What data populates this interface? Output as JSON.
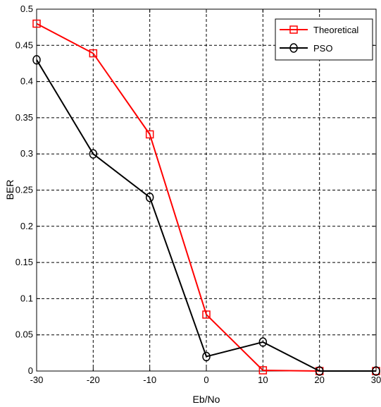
{
  "chart_data": {
    "type": "line",
    "xlabel": "Eb/No",
    "ylabel": "BER",
    "xlim": [
      -30,
      30
    ],
    "ylim": [
      0,
      0.5
    ],
    "x_ticks": [
      "-30",
      "-20",
      "-10",
      "0",
      "10",
      "20",
      "30"
    ],
    "y_ticks": [
      "0",
      "0.05",
      "0.1",
      "0.15",
      "0.2",
      "0.25",
      "0.3",
      "0.35",
      "0.4",
      "0.45",
      "0.5"
    ],
    "grid": true,
    "legend_position": "top-right",
    "x": [
      -30,
      -20,
      -10,
      0,
      10,
      20,
      30
    ],
    "series": [
      {
        "name": "Theoretical",
        "marker": "square",
        "color": "#ff0000",
        "values": [
          0.48,
          0.439,
          0.327,
          0.078,
          0.001,
          0.0,
          0.0
        ]
      },
      {
        "name": "PSO",
        "marker": "circle",
        "color": "#000000",
        "values": [
          0.43,
          0.3,
          0.24,
          0.02,
          0.04,
          0.0,
          0.0
        ]
      }
    ]
  }
}
